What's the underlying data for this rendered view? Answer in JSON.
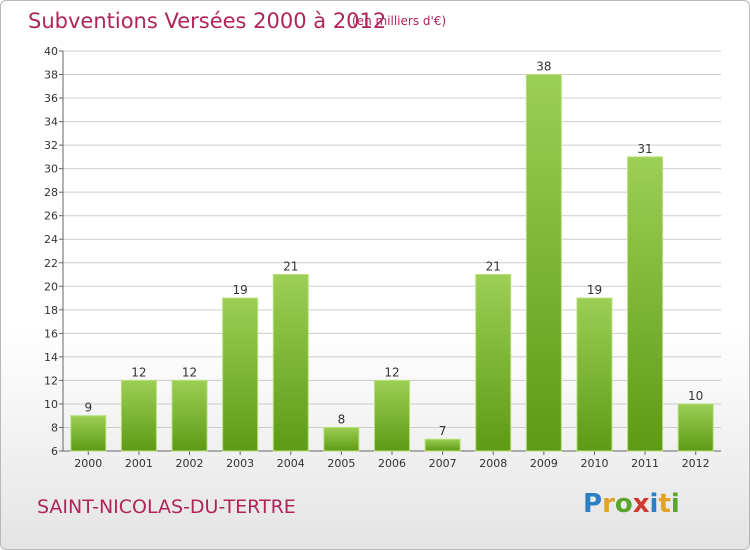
{
  "header": {
    "title": "Subventions Versées 2000 à 2012",
    "unit": "(en milliers d'€)"
  },
  "footer": {
    "commune": "SAINT-NICOLAS-DU-TERTRE",
    "logo": "Proxiti"
  },
  "colors": {
    "title": "#b0245a",
    "bar_top": "#9ccf55",
    "bar_bottom": "#5e9a14",
    "grid": "#cccccc"
  },
  "chart_data": {
    "type": "bar",
    "title": "Subventions Versées 2000 à 2012",
    "subtitle": "(en milliers d'€)",
    "categories": [
      "2000",
      "2001",
      "2002",
      "2003",
      "2004",
      "2005",
      "2006",
      "2007",
      "2008",
      "2009",
      "2010",
      "2011",
      "2012"
    ],
    "values": [
      9,
      12,
      12,
      19,
      21,
      8,
      12,
      7,
      21,
      38,
      19,
      31,
      10
    ],
    "ylim": [
      6,
      40
    ],
    "yticks": [
      6,
      8,
      10,
      12,
      14,
      16,
      18,
      20,
      22,
      24,
      26,
      28,
      30,
      32,
      34,
      36,
      38,
      40
    ],
    "grid": "horizontal",
    "legend": "none"
  }
}
